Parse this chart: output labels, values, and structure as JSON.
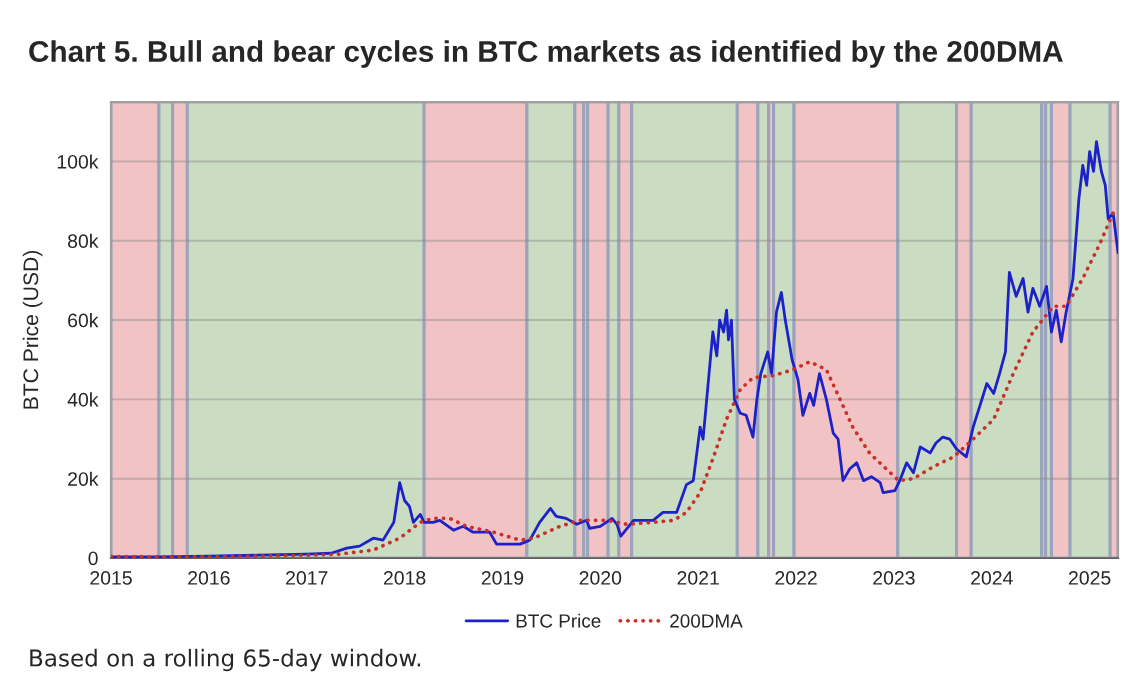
{
  "chart_data": {
    "type": "line",
    "title": "Chart 5. Bull and bear cycles in BTC markets as identified by the 200DMA",
    "ylabel": "BTC Price (USD)",
    "annotations": [
      "Based on a rolling 65-day window."
    ],
    "xlim": [
      2015,
      2025.29
    ],
    "xticks": [
      2015,
      2016,
      2017,
      2018,
      2019,
      2020,
      2021,
      2022,
      2023,
      2024,
      2025
    ],
    "ylim": [
      0,
      115000
    ],
    "yticks": [
      0,
      {
        "value": 20000,
        "label": "20k"
      },
      {
        "value": 40000,
        "label": "40k"
      },
      {
        "value": 60000,
        "label": "60k"
      },
      {
        "value": 80000,
        "label": "80k"
      },
      {
        "value": 100000,
        "label": "100k"
      }
    ],
    "grid": "y",
    "legend": "bottom",
    "series": [
      {
        "name": "BTC Price",
        "color": "#1c22c8",
        "line_style": "solid",
        "x": [
          2015.0,
          2015.5,
          2016.0,
          2016.5,
          2017.0,
          2017.25,
          2017.41,
          2017.54,
          2017.68,
          2017.78,
          2017.89,
          2017.95,
          2018.0,
          2018.05,
          2018.09,
          2018.16,
          2018.2,
          2018.29,
          2018.36,
          2018.5,
          2018.6,
          2018.7,
          2018.87,
          2018.94,
          2019.18,
          2019.28,
          2019.38,
          2019.49,
          2019.55,
          2019.65,
          2019.76,
          2019.86,
          2019.89,
          2020.0,
          2020.12,
          2020.17,
          2020.21,
          2020.34,
          2020.54,
          2020.64,
          2020.78,
          2020.88,
          2020.95,
          2021.02,
          2021.05,
          2021.1,
          2021.15,
          2021.19,
          2021.22,
          2021.26,
          2021.29,
          2021.31,
          2021.34,
          2021.37,
          2021.43,
          2021.49,
          2021.56,
          2021.6,
          2021.64,
          2021.71,
          2021.75,
          2021.8,
          2021.85,
          2021.89,
          2021.96,
          2022.02,
          2022.07,
          2022.14,
          2022.18,
          2022.24,
          2022.31,
          2022.38,
          2022.43,
          2022.48,
          2022.55,
          2022.62,
          2022.69,
          2022.77,
          2022.86,
          2022.89,
          2023.01,
          2023.06,
          2023.13,
          2023.2,
          2023.27,
          2023.37,
          2023.43,
          2023.5,
          2023.57,
          2023.64,
          2023.74,
          2023.81,
          2023.88,
          2023.95,
          2024.02,
          2024.08,
          2024.14,
          2024.18,
          2024.25,
          2024.32,
          2024.37,
          2024.42,
          2024.49,
          2024.56,
          2024.61,
          2024.66,
          2024.71,
          2024.76,
          2024.83,
          2024.89,
          2024.93,
          2024.97,
          2025.0,
          2025.04,
          2025.07,
          2025.12,
          2025.16,
          2025.19,
          2025.24,
          2025.29
        ],
        "values": [
          300,
          300,
          500,
          700,
          1000,
          1200,
          2500,
          3000,
          5000,
          4500,
          9000,
          19000,
          14500,
          13000,
          9000,
          11000,
          9000,
          9000,
          9500,
          7000,
          8000,
          6500,
          6500,
          3500,
          3500,
          4500,
          9000,
          12500,
          10500,
          10000,
          8500,
          9500,
          7500,
          8000,
          10000,
          8500,
          5500,
          9500,
          9500,
          11500,
          11500,
          18500,
          19500,
          33000,
          30000,
          43500,
          57000,
          51000,
          60000,
          57000,
          62500,
          55000,
          60000,
          40000,
          36500,
          36000,
          30500,
          40000,
          46500,
          52000,
          46500,
          62000,
          67000,
          60000,
          50000,
          45000,
          36000,
          41500,
          38500,
          46500,
          40000,
          31500,
          30000,
          19500,
          22500,
          24000,
          19500,
          20500,
          19000,
          16500,
          17000,
          19500,
          24000,
          21500,
          28000,
          26500,
          29000,
          30500,
          30000,
          27500,
          25500,
          33000,
          38500,
          44000,
          41500,
          46500,
          52000,
          72000,
          66000,
          70500,
          62000,
          68000,
          63500,
          68500,
          57000,
          62500,
          54500,
          62000,
          70500,
          90500,
          99000,
          94000,
          102500,
          97500,
          105000,
          97500,
          94000,
          85500,
          87000,
          77000
        ]
      },
      {
        "name": "200DMA",
        "color": "#c8302a",
        "line_style": "dotted",
        "x": [
          2015.0,
          2015.5,
          2016.0,
          2016.5,
          2017.0,
          2017.3,
          2017.68,
          2017.95,
          2018.16,
          2018.29,
          2018.46,
          2018.63,
          2018.91,
          2019.18,
          2019.32,
          2019.59,
          2019.79,
          2020.06,
          2020.27,
          2020.54,
          2020.75,
          2020.88,
          2021.02,
          2021.15,
          2021.29,
          2021.43,
          2021.56,
          2021.77,
          2021.97,
          2022.14,
          2022.31,
          2022.45,
          2022.58,
          2022.75,
          2022.92,
          2023.05,
          2023.2,
          2023.4,
          2023.61,
          2023.81,
          2024.02,
          2024.22,
          2024.42,
          2024.63,
          2024.76,
          2024.93,
          2025.1,
          2025.24,
          2025.29
        ],
        "values": [
          400,
          300,
          300,
          500,
          700,
          900,
          2000,
          5000,
          9000,
          10000,
          10000,
          8000,
          6500,
          4500,
          5000,
          8000,
          9500,
          9500,
          8500,
          9000,
          9500,
          11500,
          16500,
          25000,
          35000,
          42500,
          45500,
          46000,
          47500,
          49500,
          47500,
          40000,
          33000,
          26500,
          22500,
          19500,
          20000,
          23000,
          25500,
          30000,
          35000,
          46500,
          57000,
          63500,
          63500,
          70500,
          79000,
          87000,
          86500
        ]
      }
    ],
    "bands": [
      {
        "axis": "x",
        "from": 2015.0,
        "to": 2015.49,
        "color": "#f2c3c4"
      },
      {
        "axis": "x",
        "from": 2015.49,
        "to": 2015.63,
        "color": "#cadcc2"
      },
      {
        "axis": "x",
        "from": 2015.63,
        "to": 2015.78,
        "color": "#f2c3c4"
      },
      {
        "axis": "x",
        "from": 2015.78,
        "to": 2018.2,
        "color": "#cadcc2"
      },
      {
        "axis": "x",
        "from": 2018.2,
        "to": 2019.25,
        "color": "#f2c3c4"
      },
      {
        "axis": "x",
        "from": 2019.25,
        "to": 2019.74,
        "color": "#cadcc2"
      },
      {
        "axis": "x",
        "from": 2019.74,
        "to": 2019.83,
        "color": "#f2c3c4"
      },
      {
        "axis": "x",
        "from": 2019.83,
        "to": 2019.87,
        "color": "#cadcc2"
      },
      {
        "axis": "x",
        "from": 2019.87,
        "to": 2020.08,
        "color": "#f2c3c4"
      },
      {
        "axis": "x",
        "from": 2020.08,
        "to": 2020.19,
        "color": "#cadcc2"
      },
      {
        "axis": "x",
        "from": 2020.19,
        "to": 2020.32,
        "color": "#f2c3c4"
      },
      {
        "axis": "x",
        "from": 2020.32,
        "to": 2021.4,
        "color": "#cadcc2"
      },
      {
        "axis": "x",
        "from": 2021.4,
        "to": 2021.61,
        "color": "#f2c3c4"
      },
      {
        "axis": "x",
        "from": 2021.61,
        "to": 2021.72,
        "color": "#cadcc2"
      },
      {
        "axis": "x",
        "from": 2021.72,
        "to": 2021.77,
        "color": "#f2c3c4"
      },
      {
        "axis": "x",
        "from": 2021.77,
        "to": 2021.98,
        "color": "#cadcc2"
      },
      {
        "axis": "x",
        "from": 2021.98,
        "to": 2023.04,
        "color": "#f2c3c4"
      },
      {
        "axis": "x",
        "from": 2023.04,
        "to": 2023.64,
        "color": "#cadcc2"
      },
      {
        "axis": "x",
        "from": 2023.64,
        "to": 2023.79,
        "color": "#f2c3c4"
      },
      {
        "axis": "x",
        "from": 2023.79,
        "to": 2024.51,
        "color": "#cadcc2"
      },
      {
        "axis": "x",
        "from": 2024.51,
        "to": 2024.55,
        "color": "#f2c3c4"
      },
      {
        "axis": "x",
        "from": 2024.55,
        "to": 2024.61,
        "color": "#cadcc2"
      },
      {
        "axis": "x",
        "from": 2024.61,
        "to": 2024.8,
        "color": "#f2c3c4"
      },
      {
        "axis": "x",
        "from": 2024.8,
        "to": 2025.21,
        "color": "#cadcc2"
      },
      {
        "axis": "x",
        "from": 2025.21,
        "to": 2025.29,
        "color": "#f2c3c4"
      }
    ]
  }
}
